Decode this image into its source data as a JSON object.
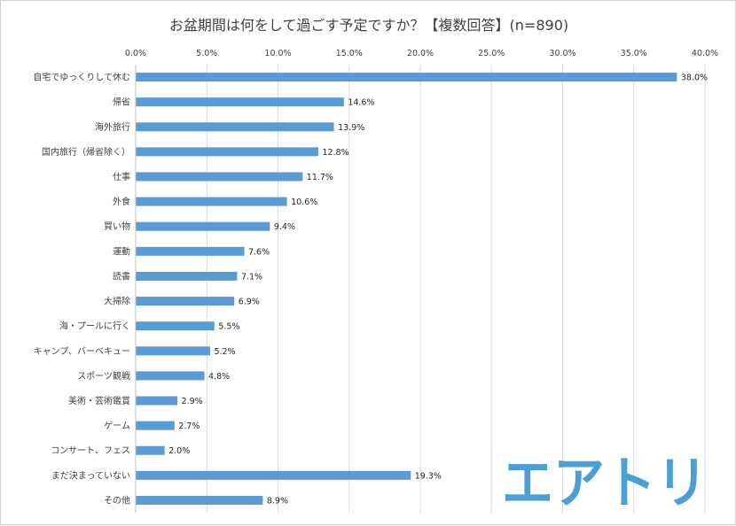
{
  "title": "お盆期間は何をして過ごす予定ですか？【複数回答】(n=890)",
  "logo_text": "エアトリ",
  "colors": {
    "bar": "#5b9bd5",
    "grid": "#d9d9d9",
    "text": "#404040",
    "logo": "#4a9fd4"
  },
  "chart_data": {
    "type": "bar",
    "orientation": "horizontal",
    "title": "お盆期間は何をして過ごす予定ですか？【複数回答】(n=890)",
    "xlim": [
      0,
      40
    ],
    "xticks": [
      "0.0%",
      "5.0%",
      "10.0%",
      "15.0%",
      "20.0%",
      "25.0%",
      "30.0%",
      "35.0%",
      "40.0%"
    ],
    "xtick_values": [
      0,
      5,
      10,
      15,
      20,
      25,
      30,
      35,
      40
    ],
    "grid": true,
    "categories": [
      "自宅でゆっくりして休む",
      "帰省",
      "海外旅行",
      "国内旅行（帰省除く）",
      "仕事",
      "外食",
      "買い物",
      "運動",
      "読書",
      "大掃除",
      "海・プールに行く",
      "キャンプ、バーベキュー",
      "スポーツ観戦",
      "美術・芸術鑑賞",
      "ゲーム",
      "コンサート、フェス",
      "まだ決まっていない",
      "その他"
    ],
    "values": [
      38.0,
      14.6,
      13.9,
      12.8,
      11.7,
      10.6,
      9.4,
      7.6,
      7.1,
      6.9,
      5.5,
      5.2,
      4.8,
      2.9,
      2.7,
      2.0,
      19.3,
      8.9
    ],
    "value_labels": [
      "38.0%",
      "14.6%",
      "13.9%",
      "12.8%",
      "11.7%",
      "10.6%",
      "9.4%",
      "7.6%",
      "7.1%",
      "6.9%",
      "5.5%",
      "5.2%",
      "4.8%",
      "2.9%",
      "2.7%",
      "2.0%",
      "19.3%",
      "8.9%"
    ]
  }
}
